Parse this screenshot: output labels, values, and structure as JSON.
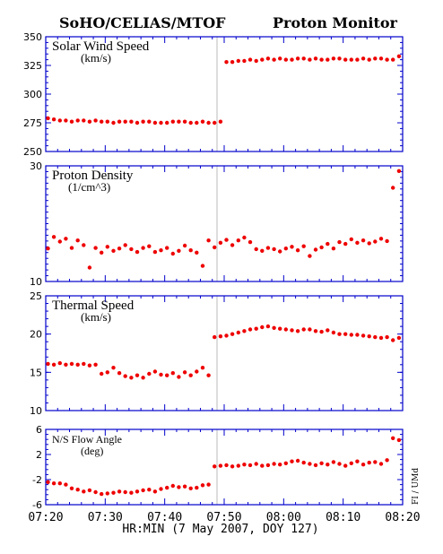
{
  "header": {
    "title_left": "SoHO/CELIAS/MTOF",
    "title_right": "Proton Monitor"
  },
  "xaxis": {
    "label": "HR:MIN (7 May 2007, DOY 127)",
    "range": [
      "07:20",
      "08:20"
    ],
    "ticks": [
      "07:20",
      "07:30",
      "07:40",
      "07:50",
      "08:00",
      "08:10",
      "08:20"
    ]
  },
  "credit": "FI / UMd",
  "colors": {
    "axis": "#0000cc",
    "points": "#ee0000",
    "gap": "#bbbbbb"
  },
  "chart_data": [
    {
      "type": "scatter",
      "label": "Solar Wind Speed",
      "unit": "(km/s)",
      "ylim": [
        250,
        350
      ],
      "yticks": [
        "350",
        "325",
        "300",
        "275",
        "250"
      ],
      "x": [
        "07:20",
        "07:21",
        "07:22",
        "07:23",
        "07:24",
        "07:25",
        "07:26",
        "07:27",
        "07:28",
        "07:29",
        "07:30",
        "07:31",
        "07:32",
        "07:33",
        "07:34",
        "07:35",
        "07:36",
        "07:37",
        "07:38",
        "07:39",
        "07:40",
        "07:41",
        "07:42",
        "07:43",
        "07:44",
        "07:45",
        "07:46",
        "07:47",
        "07:48",
        "07:49",
        "07:50",
        "07:51",
        "07:52",
        "07:53",
        "07:54",
        "07:55",
        "07:56",
        "07:57",
        "07:58",
        "07:59",
        "08:00",
        "08:01",
        "08:02",
        "08:03",
        "08:04",
        "08:05",
        "08:06",
        "08:07",
        "08:08",
        "08:09",
        "08:10",
        "08:11",
        "08:12",
        "08:13",
        "08:14",
        "08:15",
        "08:16",
        "08:17",
        "08:18",
        "08:19"
      ],
      "values": [
        279,
        278,
        277,
        277,
        276,
        277,
        277,
        276,
        277,
        276,
        276,
        275,
        276,
        276,
        276,
        275,
        276,
        276,
        275,
        275,
        275,
        276,
        276,
        276,
        275,
        275,
        276,
        275,
        275,
        276,
        328,
        328,
        329,
        329,
        330,
        329,
        330,
        331,
        330,
        331,
        330,
        330,
        331,
        331,
        330,
        331,
        330,
        330,
        331,
        331,
        330,
        330,
        330,
        331,
        330,
        331,
        331,
        330,
        330,
        333
      ]
    },
    {
      "type": "scatter",
      "label": "Proton Density",
      "unit": "(1/cm^3)",
      "ylim": [
        10,
        30
      ],
      "yticks": [
        "30",
        "10"
      ],
      "x": [
        "07:20",
        "07:21",
        "07:22",
        "07:23",
        "07:24",
        "07:25",
        "07:26",
        "07:27",
        "07:28",
        "07:29",
        "07:30",
        "07:31",
        "07:32",
        "07:33",
        "07:34",
        "07:35",
        "07:36",
        "07:37",
        "07:38",
        "07:39",
        "07:40",
        "07:41",
        "07:42",
        "07:43",
        "07:44",
        "07:45",
        "07:46",
        "07:47",
        "07:48",
        "07:49",
        "07:50",
        "07:51",
        "07:52",
        "07:53",
        "07:54",
        "07:55",
        "07:56",
        "07:57",
        "07:58",
        "07:59",
        "08:00",
        "08:01",
        "08:02",
        "08:03",
        "08:04",
        "08:05",
        "08:06",
        "08:07",
        "08:08",
        "08:09",
        "08:10",
        "08:11",
        "08:12",
        "08:13",
        "08:14",
        "08:15",
        "08:16",
        "08:17",
        "08:18",
        "08:19"
      ],
      "values": [
        15.7,
        17.7,
        16.9,
        17.4,
        15.8,
        17.1,
        16.3,
        12.4,
        15.8,
        15.0,
        16.0,
        15.3,
        15.7,
        16.3,
        15.6,
        15.1,
        15.8,
        16.1,
        15.1,
        15.4,
        15.8,
        14.8,
        15.3,
        16.2,
        15.4,
        15.0,
        12.7,
        17.1,
        15.9,
        16.7,
        17.2,
        16.3,
        17.1,
        17.6,
        16.8,
        15.6,
        15.3,
        15.8,
        15.6,
        15.2,
        15.7,
        16.0,
        15.4,
        16.1,
        14.4,
        15.5,
        15.9,
        16.5,
        15.7,
        16.8,
        16.5,
        17.3,
        16.7,
        17.1,
        16.6,
        16.9,
        17.4,
        17.0,
        26.2,
        29.1
      ]
    },
    {
      "type": "scatter",
      "label": "Thermal Speed",
      "unit": "(km/s)",
      "ylim": [
        10,
        25
      ],
      "yticks": [
        "25",
        "20",
        "15",
        "10"
      ],
      "x": [
        "07:20",
        "07:21",
        "07:22",
        "07:23",
        "07:24",
        "07:25",
        "07:26",
        "07:27",
        "07:28",
        "07:29",
        "07:30",
        "07:31",
        "07:32",
        "07:33",
        "07:34",
        "07:35",
        "07:36",
        "07:37",
        "07:38",
        "07:39",
        "07:40",
        "07:41",
        "07:42",
        "07:43",
        "07:44",
        "07:45",
        "07:46",
        "07:47",
        "07:48",
        "07:49",
        "07:50",
        "07:51",
        "07:52",
        "07:53",
        "07:54",
        "07:55",
        "07:56",
        "07:57",
        "07:58",
        "07:59",
        "08:00",
        "08:01",
        "08:02",
        "08:03",
        "08:04",
        "08:05",
        "08:06",
        "08:07",
        "08:08",
        "08:09",
        "08:10",
        "08:11",
        "08:12",
        "08:13",
        "08:14",
        "08:15",
        "08:16",
        "08:17",
        "08:18",
        "08:19"
      ],
      "values": [
        16.1,
        16.0,
        16.2,
        16.0,
        16.1,
        16.0,
        16.1,
        15.9,
        16.0,
        14.8,
        15.0,
        15.6,
        14.9,
        14.5,
        14.3,
        14.6,
        14.3,
        14.8,
        15.1,
        14.7,
        14.6,
        14.9,
        14.4,
        15.0,
        14.6,
        15.1,
        15.6,
        14.6,
        19.6,
        19.7,
        19.8,
        20.0,
        20.2,
        20.4,
        20.6,
        20.7,
        20.9,
        21.0,
        20.8,
        20.7,
        20.6,
        20.5,
        20.4,
        20.6,
        20.6,
        20.4,
        20.3,
        20.5,
        20.2,
        20.0,
        20.0,
        19.9,
        19.9,
        19.8,
        19.7,
        19.6,
        19.5,
        19.6,
        19.2,
        19.5
      ]
    },
    {
      "type": "scatter",
      "label": "N/S Flow Angle",
      "unit": "(deg)",
      "ylim": [
        -6,
        6
      ],
      "yticks": [
        "6",
        "2",
        "-2",
        "-6"
      ],
      "x": [
        "07:20",
        "07:21",
        "07:22",
        "07:23",
        "07:24",
        "07:25",
        "07:26",
        "07:27",
        "07:28",
        "07:29",
        "07:30",
        "07:31",
        "07:32",
        "07:33",
        "07:34",
        "07:35",
        "07:36",
        "07:37",
        "07:38",
        "07:39",
        "07:40",
        "07:41",
        "07:42",
        "07:43",
        "07:44",
        "07:45",
        "07:46",
        "07:47",
        "07:48",
        "07:49",
        "07:50",
        "07:51",
        "07:52",
        "07:53",
        "07:54",
        "07:55",
        "07:56",
        "07:57",
        "07:58",
        "07:59",
        "08:00",
        "08:01",
        "08:02",
        "08:03",
        "08:04",
        "08:05",
        "08:06",
        "08:07",
        "08:08",
        "08:09",
        "08:10",
        "08:11",
        "08:12",
        "08:13",
        "08:14",
        "08:15",
        "08:16",
        "08:17",
        "08:18",
        "08:19"
      ],
      "values": [
        -2.4,
        -2.6,
        -2.6,
        -2.8,
        -3.4,
        -3.6,
        -3.9,
        -3.7,
        -4.0,
        -4.3,
        -4.2,
        -4.1,
        -3.9,
        -4.0,
        -4.1,
        -3.9,
        -3.7,
        -3.6,
        -3.9,
        -3.5,
        -3.3,
        -3.0,
        -3.2,
        -3.1,
        -3.4,
        -3.3,
        -2.9,
        -2.8,
        0.1,
        0.2,
        0.3,
        0.1,
        0.2,
        0.4,
        0.3,
        0.5,
        0.2,
        0.3,
        0.5,
        0.4,
        0.6,
        0.9,
        1.0,
        0.7,
        0.5,
        0.3,
        0.6,
        0.4,
        0.8,
        0.5,
        0.2,
        0.6,
        0.9,
        0.4,
        0.7,
        0.8,
        0.5,
        1.1,
        4.6,
        4.3
      ]
    }
  ]
}
